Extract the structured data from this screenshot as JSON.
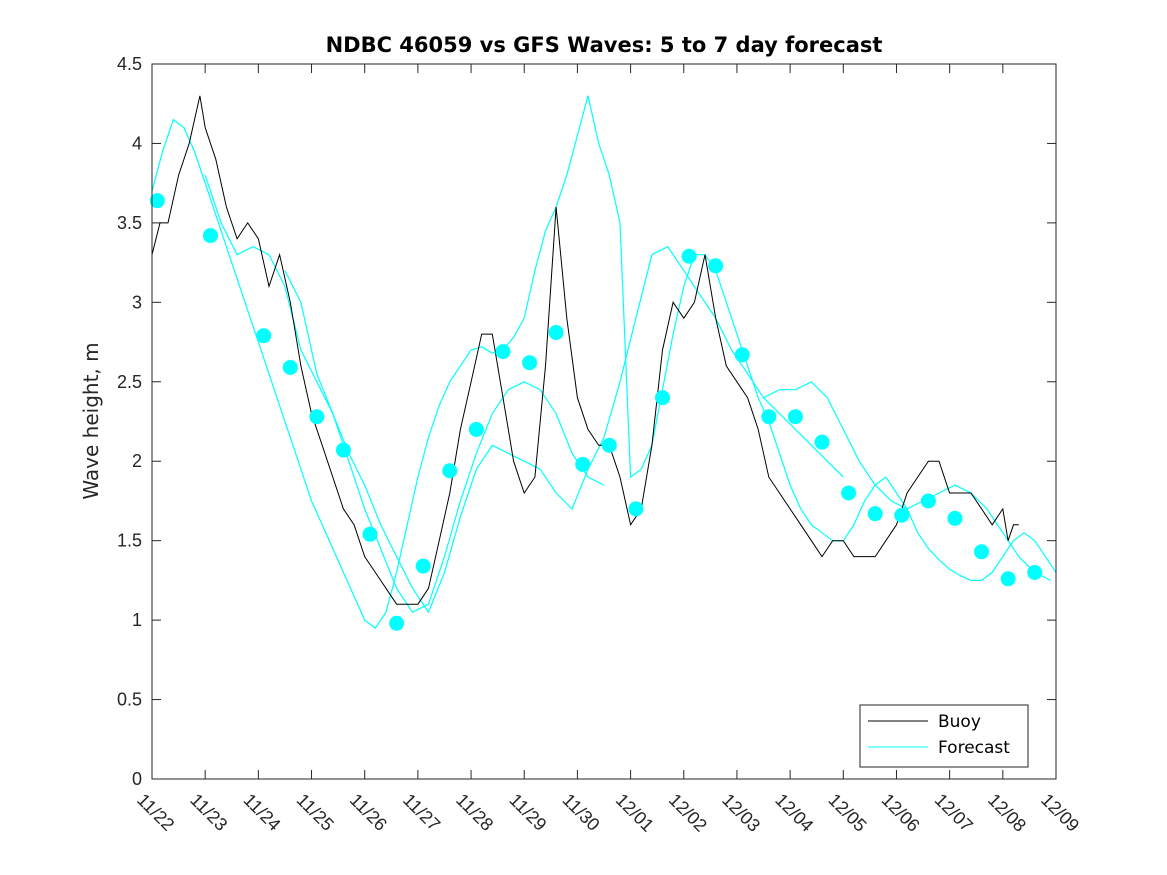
{
  "chart_data": {
    "type": "line",
    "title": "NDBC 46059 vs GFS Waves: 5 to 7 day forecast",
    "xlabel": "",
    "ylabel": "Wave height, m",
    "x_unit": "days since 11/22",
    "xlim": [
      0,
      17
    ],
    "ylim": [
      0,
      4.5
    ],
    "x_tick_labels": [
      "11/22",
      "11/23",
      "11/24",
      "11/25",
      "11/26",
      "11/27",
      "11/28",
      "11/29",
      "11/30",
      "12/01",
      "12/02",
      "12/03",
      "12/04",
      "12/05",
      "12/06",
      "12/07",
      "12/08",
      "12/09"
    ],
    "y_ticks": [
      0,
      0.5,
      1,
      1.5,
      2,
      2.5,
      3,
      3.5,
      4,
      4.5
    ],
    "y_tick_labels": [
      "0",
      "0.5",
      "1",
      "1.5",
      "2",
      "2.5",
      "3",
      "3.5",
      "4",
      "4.5"
    ],
    "legend": {
      "position": "bottom-right",
      "entries": [
        "Buoy",
        "Forecast"
      ]
    },
    "colors": {
      "buoy": "#000000",
      "forecast": "#00ffff"
    },
    "series": [
      {
        "name": "Buoy",
        "x": [
          0,
          0.15,
          0.3,
          0.5,
          0.7,
          0.9,
          1.0,
          1.2,
          1.4,
          1.6,
          1.8,
          2.0,
          2.2,
          2.4,
          2.6,
          2.8,
          3.0,
          3.2,
          3.4,
          3.6,
          3.8,
          4.0,
          4.2,
          4.4,
          4.6,
          4.8,
          5.0,
          5.2,
          5.4,
          5.6,
          5.8,
          6.0,
          6.2,
          6.4,
          6.6,
          6.8,
          7.0,
          7.2,
          7.4,
          7.6,
          7.8,
          8.0,
          8.2,
          8.4,
          8.6,
          8.8,
          9.0,
          9.2,
          9.4,
          9.6,
          9.8,
          10.0,
          10.2,
          10.4,
          10.6,
          10.8,
          11.0,
          11.2,
          11.4,
          11.6,
          11.8,
          12.0,
          12.2,
          12.4,
          12.6,
          12.8,
          13.0,
          13.2,
          13.4,
          13.6,
          13.8,
          14.0,
          14.2,
          14.4,
          14.6,
          14.8,
          15.0,
          15.2,
          15.4,
          15.6,
          15.8,
          16.0,
          16.1,
          16.2,
          16.3
        ],
        "y": [
          3.3,
          3.5,
          3.5,
          3.8,
          4.0,
          4.3,
          4.1,
          3.9,
          3.6,
          3.4,
          3.5,
          3.4,
          3.1,
          3.3,
          3.0,
          2.6,
          2.3,
          2.1,
          1.9,
          1.7,
          1.6,
          1.4,
          1.3,
          1.2,
          1.1,
          1.1,
          1.1,
          1.2,
          1.5,
          1.8,
          2.2,
          2.5,
          2.8,
          2.8,
          2.4,
          2.0,
          1.8,
          1.9,
          2.6,
          3.6,
          2.9,
          2.4,
          2.2,
          2.1,
          2.1,
          1.9,
          1.6,
          1.7,
          2.1,
          2.7,
          3.0,
          2.9,
          3.0,
          3.3,
          2.9,
          2.6,
          2.5,
          2.4,
          2.2,
          1.9,
          1.8,
          1.7,
          1.6,
          1.5,
          1.4,
          1.5,
          1.5,
          1.4,
          1.4,
          1.4,
          1.5,
          1.6,
          1.8,
          1.9,
          2.0,
          2.0,
          1.8,
          1.8,
          1.8,
          1.7,
          1.6,
          1.7,
          1.5,
          1.6,
          1.6
        ]
      },
      {
        "name": "Forecast",
        "segments": [
          {
            "x": [
              0,
              0.2,
              0.4,
              0.6,
              0.8,
              1.0,
              1.2,
              1.4,
              1.6,
              1.8,
              2.0,
              2.2,
              2.4,
              2.6,
              2.8,
              3.0,
              3.2,
              3.4,
              3.6,
              3.8,
              4.0,
              4.2,
              4.4,
              4.6,
              4.8,
              5.0,
              5.2,
              5.4,
              5.6,
              5.8,
              6.0,
              6.2,
              6.4,
              6.6,
              6.8,
              7.0,
              7.2,
              7.4,
              7.6,
              7.8,
              8.0,
              8.2,
              8.4,
              8.6,
              8.8,
              9.0,
              9.2,
              9.4,
              9.6,
              9.8,
              10.0,
              10.2,
              10.4,
              10.6,
              10.8,
              11.0,
              11.2,
              11.4,
              11.6,
              11.8,
              12.0,
              12.2,
              12.4,
              12.6,
              12.8,
              13.0,
              13.2,
              13.4,
              13.6,
              13.8,
              14.0,
              14.2,
              14.4,
              14.6,
              14.8,
              15.0,
              15.2,
              15.4,
              15.6,
              15.8,
              16.0,
              16.2,
              16.4,
              16.6,
              16.8,
              17.0
            ],
            "y": [
              3.7,
              3.95,
              4.15,
              4.1,
              3.95,
              3.75,
              3.55,
              3.35,
              3.15,
              2.95,
              2.75,
              2.55,
              2.35,
              2.15,
              1.95,
              1.75,
              1.6,
              1.45,
              1.3,
              1.15,
              1.0,
              0.95,
              1.05,
              1.3,
              1.6,
              1.9,
              2.15,
              2.35,
              2.5,
              2.6,
              2.7,
              2.72,
              2.68,
              2.7,
              2.78,
              2.9,
              3.2,
              3.45,
              3.6,
              3.8,
              4.05,
              4.3,
              4.0,
              3.8,
              3.5,
              1.9,
              1.95,
              2.1,
              2.45,
              2.8,
              3.1,
              3.3,
              3.3,
              3.2,
              3.0,
              2.8,
              2.6,
              2.4,
              2.25,
              2.05,
              1.85,
              1.7,
              1.6,
              1.55,
              1.5,
              1.5,
              1.6,
              1.75,
              1.85,
              1.9,
              1.8,
              1.7,
              1.55,
              1.45,
              1.38,
              1.32,
              1.28,
              1.25,
              1.25,
              1.3,
              1.4,
              1.5,
              1.55,
              1.5,
              1.4,
              1.3
            ]
          },
          {
            "x": [
              1.0,
              1.3,
              1.6,
              1.9,
              2.2,
              2.5,
              2.8,
              3.1,
              3.4,
              3.7,
              4.0,
              4.3,
              4.6,
              4.9,
              5.2,
              5.5,
              5.8,
              6.1,
              6.4,
              6.7,
              7.0,
              7.3,
              7.6,
              7.9,
              8.2,
              8.5
            ],
            "y": [
              3.8,
              3.5,
              3.3,
              3.35,
              3.3,
              3.1,
              2.7,
              2.5,
              2.3,
              2.0,
              1.7,
              1.45,
              1.2,
              1.05,
              1.1,
              1.4,
              1.75,
              2.05,
              2.3,
              2.45,
              2.5,
              2.45,
              2.3,
              2.05,
              1.9,
              1.85
            ]
          },
          {
            "x": [
              2.5,
              2.8,
              3.1,
              3.4,
              3.7,
              4.0,
              4.3,
              4.6,
              4.9,
              5.2,
              5.5,
              5.8,
              6.1,
              6.4,
              6.7,
              7.0,
              7.3,
              7.6,
              7.9,
              8.2,
              8.5,
              8.8,
              9.1,
              9.4,
              9.7,
              10.0,
              10.3,
              10.6,
              10.9,
              11.2,
              11.5,
              11.8,
              12.1,
              12.4,
              12.7,
              13.0
            ],
            "y": [
              3.2,
              3.0,
              2.55,
              2.3,
              2.05,
              1.85,
              1.6,
              1.4,
              1.2,
              1.05,
              1.3,
              1.65,
              1.95,
              2.1,
              2.05,
              2.0,
              1.95,
              1.8,
              1.7,
              1.95,
              2.15,
              2.5,
              2.9,
              3.3,
              3.35,
              3.2,
              3.05,
              2.9,
              2.7,
              2.55,
              2.4,
              2.3,
              2.2,
              2.1,
              2.0,
              1.9
            ]
          },
          {
            "x": [
              11.5,
              11.8,
              12.1,
              12.4,
              12.7,
              13.0,
              13.3,
              13.6,
              13.9,
              14.2,
              14.5,
              14.8,
              15.1,
              15.4,
              15.7,
              16.0,
              16.3,
              16.6,
              16.9
            ],
            "y": [
              2.4,
              2.45,
              2.45,
              2.5,
              2.4,
              2.2,
              2.0,
              1.85,
              1.75,
              1.7,
              1.75,
              1.8,
              1.85,
              1.8,
              1.7,
              1.55,
              1.4,
              1.3,
              1.25
            ]
          }
        ],
        "markers": {
          "x": [
            0.1,
            1.1,
            2.1,
            2.6,
            3.1,
            3.6,
            4.1,
            4.6,
            5.1,
            5.6,
            6.1,
            6.6,
            7.1,
            7.6,
            8.1,
            8.6,
            9.1,
            9.6,
            10.1,
            10.6,
            11.1,
            11.6,
            12.1,
            12.6,
            13.1,
            13.6,
            14.1,
            14.6,
            15.1,
            15.6,
            16.1,
            16.6
          ],
          "y": [
            3.64,
            3.42,
            2.79,
            2.59,
            2.28,
            2.07,
            1.54,
            0.98,
            1.34,
            1.94,
            2.2,
            2.69,
            2.62,
            2.81,
            1.98,
            2.1,
            1.7,
            2.4,
            3.29,
            3.23,
            2.67,
            2.28,
            2.28,
            2.12,
            1.8,
            1.67,
            1.66,
            1.75,
            1.64,
            1.43,
            1.26,
            1.3
          ]
        }
      }
    ]
  }
}
